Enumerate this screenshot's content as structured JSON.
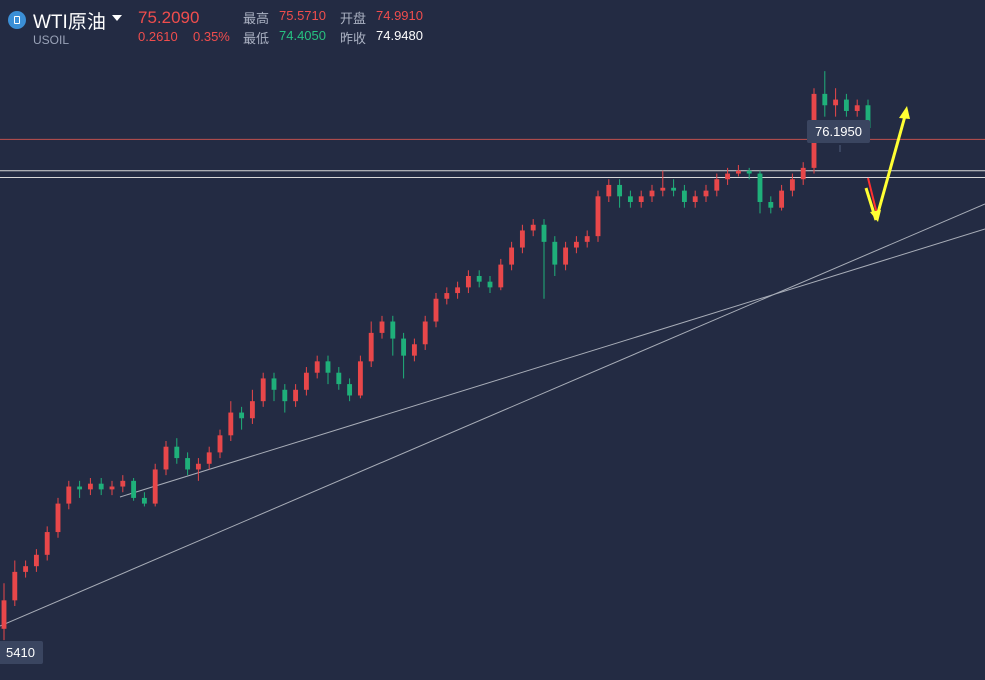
{
  "header": {
    "symbol_name": "WTI原油",
    "symbol_code": "USOIL",
    "last_price": "75.2090",
    "change": "0.2610",
    "change_pct": "0.35%",
    "high_label": "最高",
    "high_value": "75.5710",
    "open_label": "开盘",
    "open_value": "74.9910",
    "low_label": "最低",
    "low_value": "74.4050",
    "prev_close_label": "昨收",
    "prev_close_value": "74.9480"
  },
  "colors": {
    "background": "#232b43",
    "up": "#e8474a",
    "down": "#1fb07a",
    "price_up_text": "#f04d4d",
    "low_text": "#26c281",
    "annotation_arrow": "#ffff33",
    "trendline": "#a8adb8",
    "level_line": "#d8d8d8",
    "resistance_line": "#c0504d"
  },
  "icons": {
    "symbol": "oil-symbol-icon",
    "dropdown": "chevron-down-icon"
  },
  "chart_data": {
    "type": "candlestick",
    "y_range": [
      65.5,
      77.45
    ],
    "high_marker": "76.1950",
    "low_marker": "5410",
    "levels": [
      75.0,
      74.45,
      74.33
    ],
    "candles": [
      [
        66.4,
        66.9,
        66.2,
        67.2
      ],
      [
        66.9,
        67.4,
        66.8,
        67.6
      ],
      [
        67.4,
        67.5,
        67.3,
        67.6
      ],
      [
        67.5,
        67.7,
        67.4,
        67.8
      ],
      [
        67.7,
        68.1,
        67.6,
        68.2
      ],
      [
        68.1,
        68.6,
        68.0,
        68.7
      ],
      [
        68.6,
        68.9,
        68.5,
        69.0
      ],
      [
        68.9,
        68.85,
        68.7,
        69.0
      ],
      [
        68.85,
        68.95,
        68.75,
        69.05
      ],
      [
        68.95,
        68.85,
        68.75,
        69.05
      ],
      [
        68.85,
        68.9,
        68.75,
        69.0
      ],
      [
        68.9,
        69.0,
        68.8,
        69.1
      ],
      [
        69.0,
        68.7,
        68.65,
        69.05
      ],
      [
        68.7,
        68.6,
        68.55,
        68.8
      ],
      [
        68.6,
        69.2,
        68.55,
        69.3
      ],
      [
        69.2,
        69.6,
        69.1,
        69.7
      ],
      [
        69.6,
        69.4,
        69.3,
        69.75
      ],
      [
        69.4,
        69.2,
        69.1,
        69.5
      ],
      [
        69.2,
        69.3,
        69.0,
        69.4
      ],
      [
        69.3,
        69.5,
        69.2,
        69.6
      ],
      [
        69.5,
        69.8,
        69.4,
        69.9
      ],
      [
        69.8,
        70.2,
        69.7,
        70.4
      ],
      [
        70.2,
        70.1,
        69.9,
        70.3
      ],
      [
        70.1,
        70.4,
        70.0,
        70.6
      ],
      [
        70.4,
        70.8,
        70.3,
        70.9
      ],
      [
        70.8,
        70.6,
        70.4,
        70.9
      ],
      [
        70.6,
        70.4,
        70.2,
        70.7
      ],
      [
        70.4,
        70.6,
        70.3,
        70.7
      ],
      [
        70.6,
        70.9,
        70.5,
        71.0
      ],
      [
        70.9,
        71.1,
        70.8,
        71.2
      ],
      [
        71.1,
        70.9,
        70.7,
        71.2
      ],
      [
        70.9,
        70.7,
        70.6,
        71.0
      ],
      [
        70.7,
        70.5,
        70.4,
        70.8
      ],
      [
        70.5,
        71.1,
        70.45,
        71.2
      ],
      [
        71.1,
        71.6,
        71.0,
        71.8
      ],
      [
        71.6,
        71.8,
        71.5,
        71.9
      ],
      [
        71.8,
        71.5,
        71.2,
        71.9
      ],
      [
        71.5,
        71.2,
        70.8,
        71.6
      ],
      [
        71.2,
        71.4,
        71.1,
        71.5
      ],
      [
        71.4,
        71.8,
        71.3,
        71.9
      ],
      [
        71.8,
        72.2,
        71.7,
        72.3
      ],
      [
        72.2,
        72.3,
        72.1,
        72.4
      ],
      [
        72.3,
        72.4,
        72.2,
        72.5
      ],
      [
        72.4,
        72.6,
        72.3,
        72.7
      ],
      [
        72.6,
        72.5,
        72.4,
        72.7
      ],
      [
        72.5,
        72.4,
        72.3,
        72.6
      ],
      [
        72.4,
        72.8,
        72.35,
        72.9
      ],
      [
        72.8,
        73.1,
        72.7,
        73.2
      ],
      [
        73.1,
        73.4,
        73.0,
        73.5
      ],
      [
        73.4,
        73.5,
        73.3,
        73.6
      ],
      [
        73.5,
        73.2,
        72.2,
        73.6
      ],
      [
        73.2,
        72.8,
        72.6,
        73.3
      ],
      [
        72.8,
        73.1,
        72.7,
        73.2
      ],
      [
        73.1,
        73.2,
        73.0,
        73.3
      ],
      [
        73.2,
        73.3,
        73.1,
        73.4
      ],
      [
        73.3,
        74.0,
        73.2,
        74.1
      ],
      [
        74.0,
        74.2,
        73.9,
        74.3
      ],
      [
        74.2,
        74.0,
        73.8,
        74.3
      ],
      [
        74.0,
        73.9,
        73.8,
        74.1
      ],
      [
        73.9,
        74.0,
        73.8,
        74.1
      ],
      [
        74.0,
        74.1,
        73.9,
        74.2
      ],
      [
        74.1,
        74.15,
        74.0,
        74.45
      ],
      [
        74.15,
        74.1,
        74.0,
        74.3
      ],
      [
        74.1,
        73.9,
        73.8,
        74.2
      ],
      [
        73.9,
        74.0,
        73.8,
        74.1
      ],
      [
        74.0,
        74.1,
        73.9,
        74.2
      ],
      [
        74.1,
        74.3,
        74.0,
        74.4
      ],
      [
        74.3,
        74.4,
        74.2,
        74.5
      ],
      [
        74.4,
        74.45,
        74.35,
        74.55
      ],
      [
        74.45,
        74.4,
        74.3,
        74.5
      ],
      [
        74.4,
        73.9,
        73.7,
        74.45
      ],
      [
        73.9,
        73.8,
        73.7,
        74.0
      ],
      [
        73.8,
        74.1,
        73.75,
        74.2
      ],
      [
        74.1,
        74.3,
        74.0,
        74.4
      ],
      [
        74.3,
        74.5,
        74.2,
        74.6
      ],
      [
        74.5,
        75.8,
        74.4,
        75.9
      ],
      [
        75.8,
        75.6,
        75.4,
        76.2
      ],
      [
        75.6,
        75.7,
        75.4,
        75.9
      ],
      [
        75.7,
        75.5,
        75.4,
        75.8
      ],
      [
        75.5,
        75.6,
        75.4,
        75.7
      ],
      [
        75.6,
        75.2,
        75.1,
        75.7
      ]
    ]
  }
}
